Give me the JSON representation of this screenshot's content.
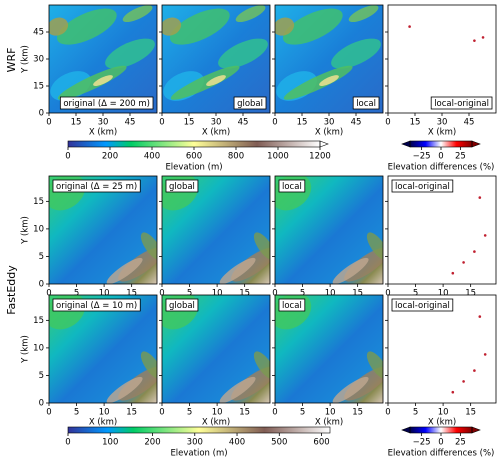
{
  "row_labels": [
    "WRF",
    "FastEddy"
  ],
  "axes": [
    {
      "xlim": [
        0,
        60
      ],
      "ylim": [
        0,
        60
      ],
      "xticks": [
        0,
        15,
        30,
        45
      ],
      "yticks": [
        0,
        15,
        30,
        45
      ],
      "x_label": "X (km)",
      "y_label": "Y (km)",
      "label_position": "lower right",
      "panel_labels": [
        "original (Δ = 200 m)",
        "global",
        "local",
        "local-original"
      ]
    },
    {
      "xlim": [
        0,
        19.6
      ],
      "ylim": [
        0,
        19.6
      ],
      "xticks": [
        0,
        5,
        10,
        15
      ],
      "yticks": [
        0,
        5,
        10,
        15
      ],
      "y_label": "Y (km)",
      "label_position": "upper left",
      "panel_labels": [
        "original (Δ = 25 m)",
        "global",
        "local",
        "local-original"
      ]
    },
    {
      "xlim": [
        0,
        19.6
      ],
      "ylim": [
        0,
        19.6
      ],
      "xticks": [
        0,
        5,
        10,
        15
      ],
      "yticks": [
        0,
        5,
        10,
        15
      ],
      "x_label": "X (km)",
      "y_label": "Y (km)",
      "label_position": "upper left",
      "panel_labels": [
        "original (Δ = 10 m)",
        "global",
        "local",
        "local-original"
      ]
    }
  ],
  "colorbars": [
    {
      "label": "Elevation (m)",
      "lim": [
        0,
        1200
      ],
      "ticks": [
        0,
        200,
        400,
        600,
        800,
        1000,
        1200
      ],
      "extend": "max",
      "colormap": "terrain",
      "row": 0
    },
    {
      "label": "Elevation differences (%)",
      "lim": [
        -40,
        40
      ],
      "ticks": [
        {
          "value": -25,
          "label": "−25"
        },
        0,
        25
      ],
      "extend": "both",
      "colormap": "seismic",
      "row": 0
    },
    {
      "label": "Elevation (m)",
      "lim": [
        0,
        620
      ],
      "ticks": [
        0,
        100,
        200,
        300,
        400,
        500,
        600
      ],
      "extend": "none",
      "colormap": "terrain",
      "row": 2
    },
    {
      "label": "Elevation differences (%)",
      "lim": [
        -40,
        40
      ],
      "ticks": [
        {
          "value": -25,
          "label": "−25"
        },
        0,
        25
      ],
      "extend": "both",
      "colormap": "seismic",
      "row": 2
    }
  ]
}
